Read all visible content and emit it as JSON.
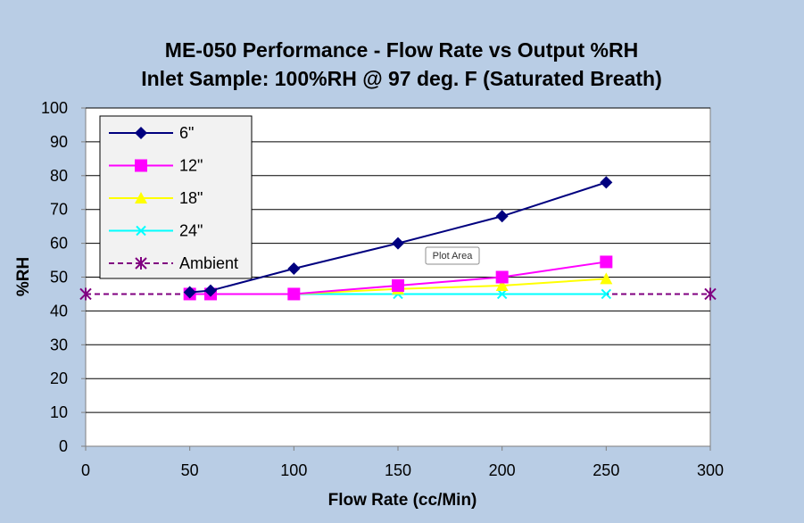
{
  "chart_data": {
    "type": "line",
    "title": "ME-050 Performance - Flow Rate vs Output %RH",
    "subtitle": "Inlet Sample: 100%RH @ 97 deg. F (Saturated Breath)",
    "xlabel": "Flow Rate (cc/Min)",
    "ylabel": "%RH",
    "xlim": [
      0,
      300
    ],
    "ylim": [
      0,
      100
    ],
    "x_ticks": [
      "0",
      "50",
      "100",
      "150",
      "200",
      "250",
      "300"
    ],
    "y_ticks": [
      "0",
      "10",
      "20",
      "30",
      "40",
      "50",
      "60",
      "70",
      "80",
      "90",
      "100"
    ],
    "grid": "horizontal",
    "legend_position": "top-left",
    "series": [
      {
        "name": "6\"",
        "color": "#00007f",
        "marker": "diamond",
        "dash": false,
        "x": [
          50,
          60,
          100,
          150,
          200,
          250
        ],
        "y": [
          45.5,
          46,
          52.5,
          60,
          68,
          78
        ]
      },
      {
        "name": "12\"",
        "color": "#ff00ff",
        "marker": "square",
        "dash": false,
        "x": [
          50,
          60,
          100,
          150,
          200,
          250
        ],
        "y": [
          45,
          45,
          45,
          47.5,
          50,
          54.5
        ]
      },
      {
        "name": "18\"",
        "color": "#ffff00",
        "marker": "triangle",
        "dash": false,
        "x": [
          50,
          60,
          100,
          150,
          200,
          250
        ],
        "y": [
          45,
          45,
          45,
          46.5,
          47.5,
          49.5
        ]
      },
      {
        "name": "24\"",
        "color": "#00ffff",
        "marker": "x",
        "dash": false,
        "x": [
          50,
          60,
          100,
          150,
          200,
          250
        ],
        "y": [
          45,
          45,
          45,
          45,
          45,
          45
        ]
      },
      {
        "name": "Ambient",
        "color": "#800080",
        "marker": "star",
        "dash": true,
        "x": [
          0,
          300
        ],
        "y": [
          45,
          45
        ]
      }
    ]
  },
  "tooltip": {
    "text": "Plot Area"
  }
}
